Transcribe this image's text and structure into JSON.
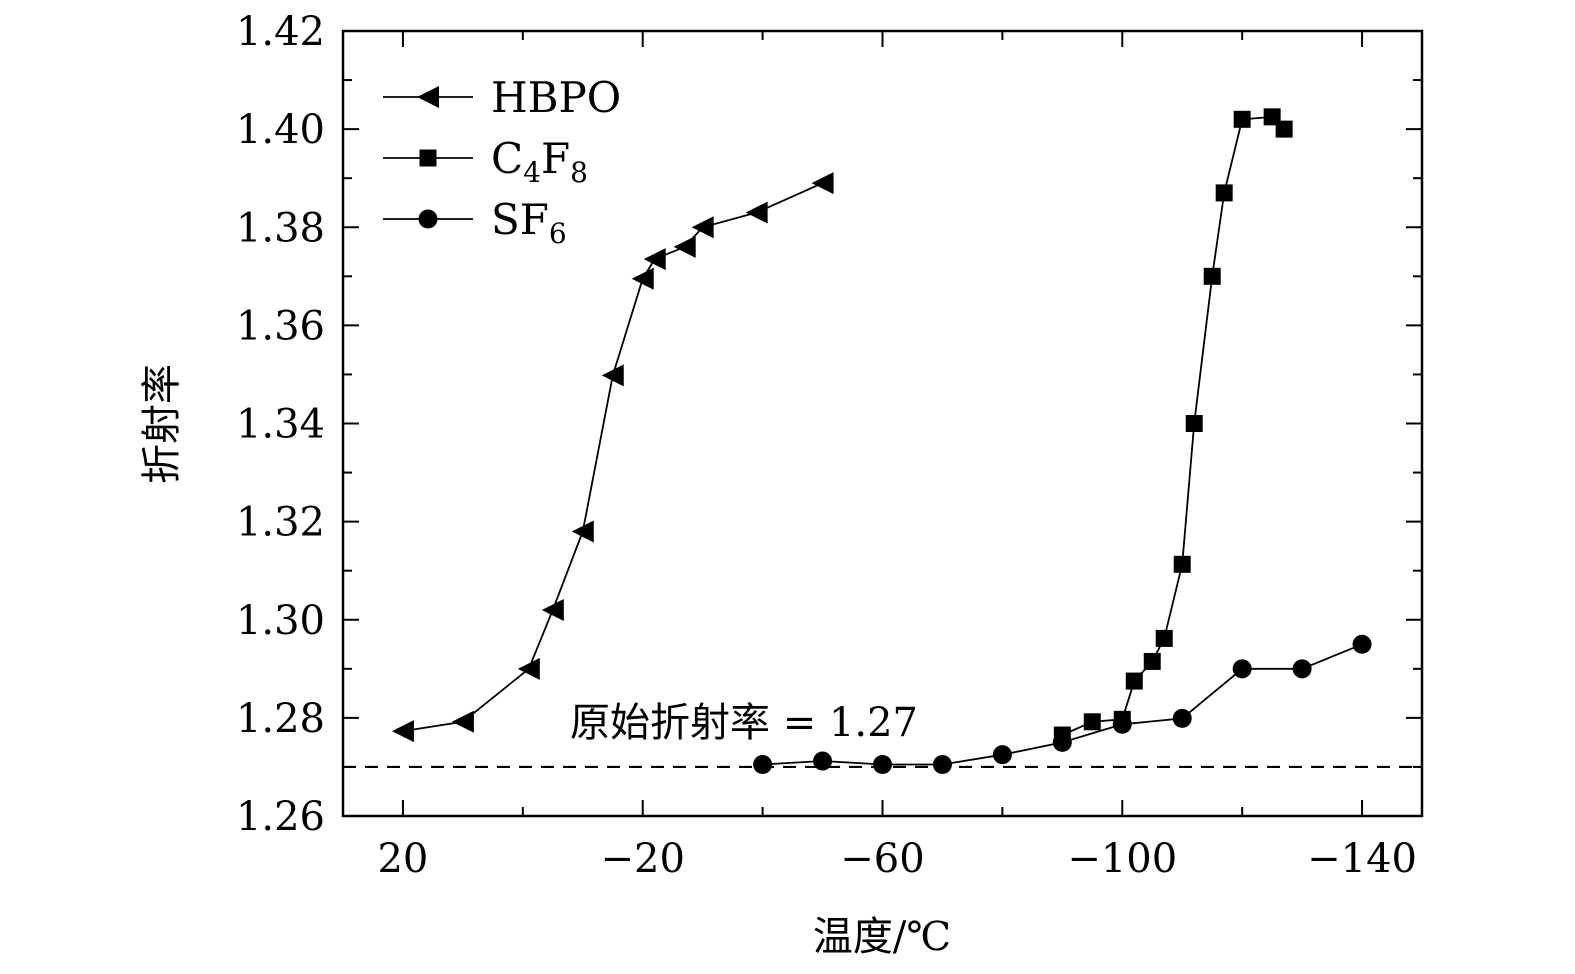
{
  "chart_data": {
    "type": "line",
    "xlabel": "温度/℃",
    "ylabel": "折射率",
    "xlim": [
      30,
      -150
    ],
    "ylim": [
      1.26,
      1.42
    ],
    "x_ticks": [
      20,
      -20,
      -60,
      -100,
      -140
    ],
    "x_tick_labels": [
      "20",
      "−20",
      "−60",
      "−100",
      "−140"
    ],
    "y_ticks": [
      1.26,
      1.28,
      1.3,
      1.32,
      1.34,
      1.36,
      1.38,
      1.4,
      1.42
    ],
    "y_tick_labels": [
      "1.26",
      "1.28",
      "1.30",
      "1.32",
      "1.34",
      "1.36",
      "1.38",
      "1.40",
      "1.42"
    ],
    "grid": false,
    "legend_position": "top-left",
    "series": [
      {
        "name": "HBPO",
        "name_main": "HBPO",
        "name_sub": "",
        "name_tail": "",
        "name_tail_sub": "",
        "marker": "triangle-left",
        "x": [
          20,
          10,
          -1,
          -5,
          -10,
          -15,
          -20,
          -22,
          -27,
          -30,
          -39,
          -50
        ],
        "y": [
          1.2773,
          1.2792,
          1.29,
          1.302,
          1.318,
          1.3498,
          1.3695,
          1.3735,
          1.376,
          1.38,
          1.383,
          1.389
        ]
      },
      {
        "name": "C4F8",
        "name_main": "C",
        "name_sub": "4",
        "name_tail": "F",
        "name_tail_sub": "8",
        "marker": "square",
        "x": [
          -90,
          -95,
          -100,
          -102,
          -105,
          -107,
          -110,
          -112,
          -115,
          -117,
          -120,
          -125,
          -127
        ],
        "y": [
          1.2765,
          1.2792,
          1.2797,
          1.2875,
          1.2915,
          1.2962,
          1.3113,
          1.34,
          1.37,
          1.387,
          1.402,
          1.4025,
          1.4
        ]
      },
      {
        "name": "SF6",
        "name_main": "SF",
        "name_sub": "6",
        "name_tail": "",
        "name_tail_sub": "",
        "marker": "circle",
        "x": [
          -40,
          -50,
          -60,
          -70,
          -80,
          -90,
          -100,
          -110,
          -120,
          -130,
          -140
        ],
        "y": [
          1.2705,
          1.2712,
          1.2705,
          1.2705,
          1.2725,
          1.275,
          1.2787,
          1.2799,
          1.29,
          1.29,
          1.295
        ]
      }
    ],
    "reference_line": {
      "y": 1.27,
      "style": "dashed",
      "label": "原始折射率 = 1.27"
    }
  }
}
